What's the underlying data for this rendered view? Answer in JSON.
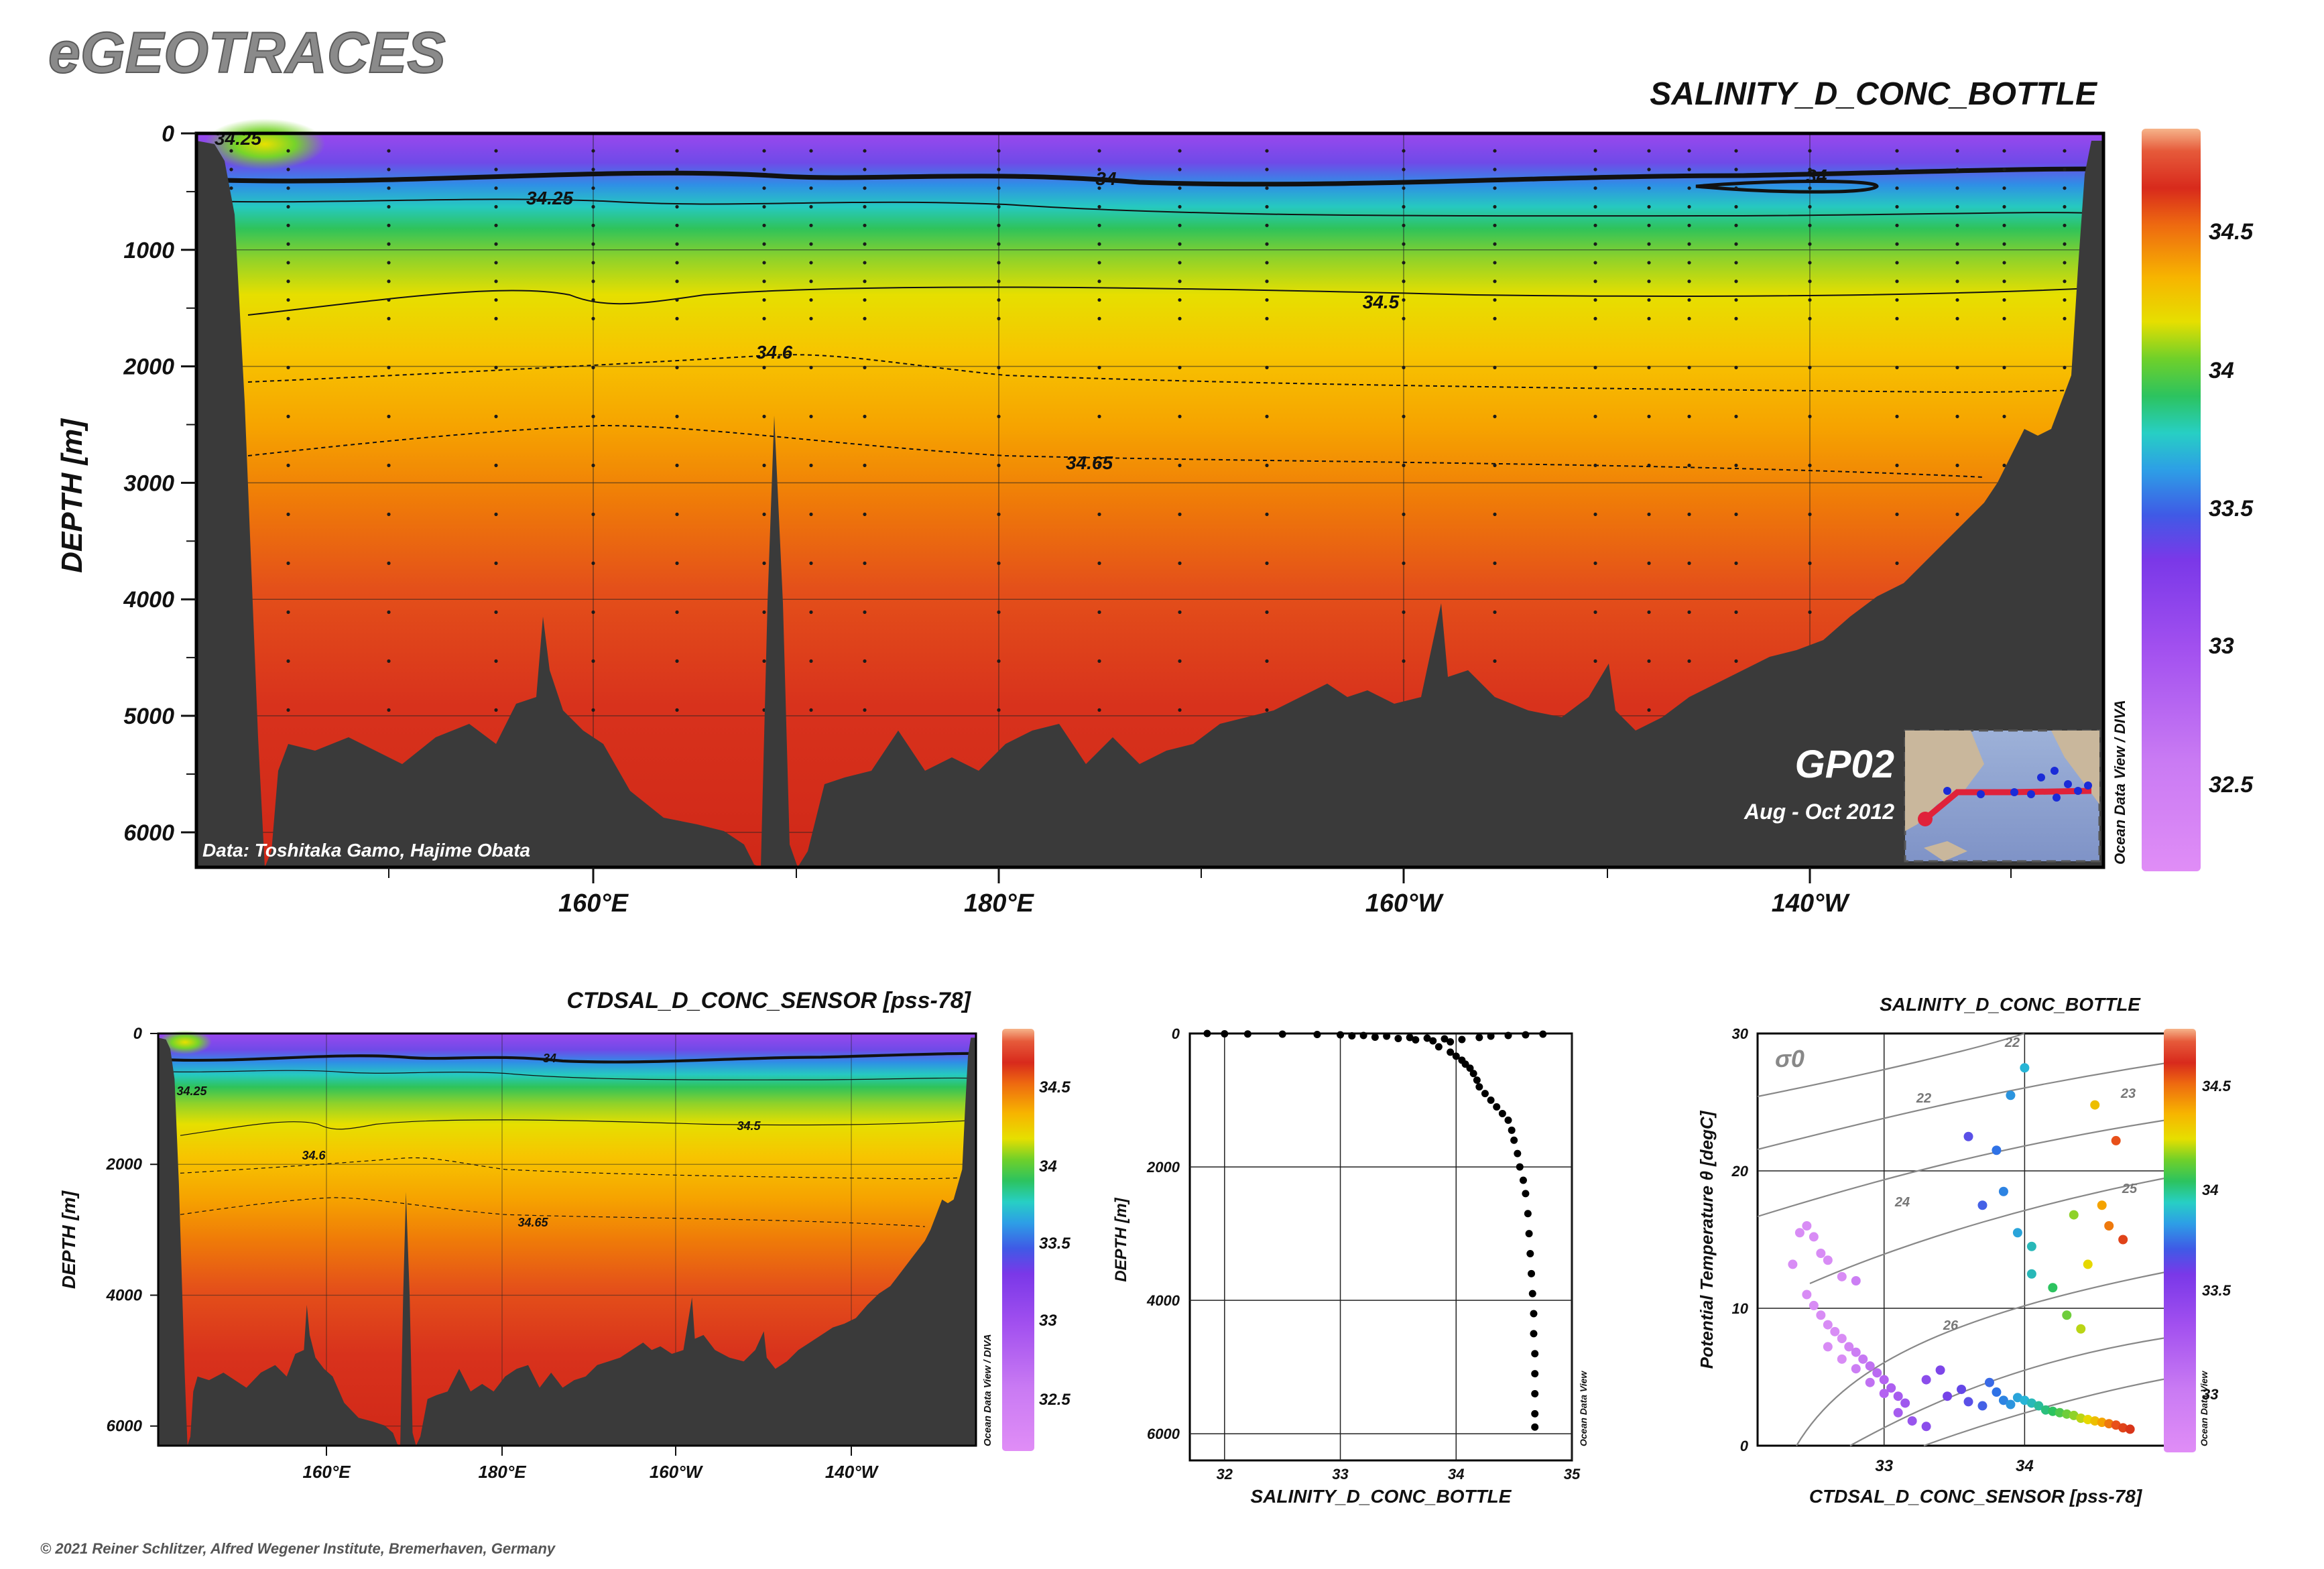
{
  "brand": "eGEOTRACES",
  "copyright": "© 2021 Reiner Schlitzer, Alfred Wegener Institute, Bremerhaven, Germany",
  "watermark_diva": "Ocean Data View / DIVA",
  "watermark_odv": "Ocean Data View",
  "colors": {
    "land": "#3a3a3a",
    "scale": [
      "#e37ff2",
      "#b15cf0",
      "#7d38e8",
      "#3f5ae6",
      "#2f9fe6",
      "#26d2c8",
      "#2bc76a",
      "#76d42a",
      "#e8e000",
      "#f6c000",
      "#f49100",
      "#ea5a10",
      "#d62e18",
      "#c8201a"
    ]
  },
  "chart_data": [
    {
      "type": "heatmap",
      "title": "SALINITY_D_CONC_BOTTLE",
      "ylabel": "DEPTH [m]",
      "xlabel": "",
      "y_ticks": [
        "0",
        "1000",
        "2000",
        "3000",
        "4000",
        "5000",
        "6000"
      ],
      "x_ticks": [
        "160°E",
        "180°E",
        "160°W",
        "140°W"
      ],
      "ylim": [
        0,
        6300
      ],
      "colorbar_ticks": [
        "34.5",
        "34",
        "33.5",
        "33",
        "32.5"
      ],
      "contour_labels": [
        "34.25",
        "34",
        "34",
        "34.25",
        "34.5",
        "34.6",
        "34.65"
      ],
      "section_name": "GP02",
      "cruise_period": "Aug - Oct 2012",
      "data_credit": "Data: Toshitaka Gamo, Hajime Obata",
      "grid": true
    },
    {
      "type": "heatmap",
      "title": "CTDSAL_D_CONC_SENSOR [pss-78]",
      "ylabel": "DEPTH [m]",
      "y_ticks": [
        "0",
        "2000",
        "4000",
        "6000"
      ],
      "x_ticks": [
        "160°E",
        "180°E",
        "160°W",
        "140°W"
      ],
      "colorbar_ticks": [
        "34.5",
        "34",
        "33.5",
        "33",
        "32.5"
      ],
      "contour_labels": [
        "34",
        "34.25",
        "34.5",
        "34.6",
        "34.65"
      ],
      "grid": true
    },
    {
      "type": "scatter",
      "xlabel": "SALINITY_D_CONC_BOTTLE",
      "ylabel": "DEPTH [m]",
      "x_ticks": [
        "32",
        "33",
        "34",
        "35"
      ],
      "y_ticks": [
        "0",
        "2000",
        "4000",
        "6000"
      ],
      "xlim": [
        31.7,
        35
      ],
      "ylim": [
        0,
        6400
      ],
      "points": [
        [
          31.85,
          0
        ],
        [
          32.0,
          5
        ],
        [
          32.2,
          8
        ],
        [
          32.5,
          10
        ],
        [
          32.8,
          15
        ],
        [
          33.0,
          20
        ],
        [
          33.2,
          30
        ],
        [
          33.4,
          40
        ],
        [
          33.6,
          60
        ],
        [
          33.75,
          70
        ],
        [
          33.9,
          80
        ],
        [
          34.05,
          90
        ],
        [
          34.2,
          60
        ],
        [
          34.3,
          40
        ],
        [
          34.45,
          30
        ],
        [
          34.6,
          20
        ],
        [
          34.75,
          10
        ],
        [
          33.1,
          35
        ],
        [
          33.3,
          55
        ],
        [
          33.5,
          75
        ],
        [
          33.65,
          95
        ],
        [
          33.8,
          110
        ],
        [
          33.95,
          125
        ],
        [
          33.85,
          200
        ],
        [
          33.95,
          280
        ],
        [
          34.0,
          340
        ],
        [
          34.05,
          400
        ],
        [
          34.08,
          460
        ],
        [
          34.12,
          520
        ],
        [
          34.15,
          600
        ],
        [
          34.18,
          700
        ],
        [
          34.2,
          800
        ],
        [
          34.25,
          900
        ],
        [
          34.3,
          1000
        ],
        [
          34.35,
          1100
        ],
        [
          34.4,
          1200
        ],
        [
          34.45,
          1300
        ],
        [
          34.48,
          1450
        ],
        [
          34.5,
          1600
        ],
        [
          34.53,
          1800
        ],
        [
          34.55,
          2000
        ],
        [
          34.58,
          2200
        ],
        [
          34.6,
          2400
        ],
        [
          34.62,
          2700
        ],
        [
          34.63,
          3000
        ],
        [
          34.64,
          3300
        ],
        [
          34.65,
          3600
        ],
        [
          34.66,
          3900
        ],
        [
          34.67,
          4200
        ],
        [
          34.67,
          4500
        ],
        [
          34.68,
          4800
        ],
        [
          34.68,
          5100
        ],
        [
          34.68,
          5400
        ],
        [
          34.68,
          5700
        ],
        [
          34.68,
          5900
        ]
      ],
      "grid": true
    },
    {
      "type": "scatter",
      "title": "SALINITY_D_CONC_BOTTLE",
      "xlabel": "CTDSAL_D_CONC_SENSOR [pss-78]",
      "ylabel": "Potential Temperature θ [degC]",
      "x_ticks": [
        "33",
        "34"
      ],
      "y_ticks": [
        "0",
        "10",
        "20",
        "30"
      ],
      "xlim": [
        32.1,
        35.2
      ],
      "ylim": [
        0,
        30
      ],
      "sigma_label": "σ0",
      "isopycnal_labels": [
        "22",
        "23",
        "24",
        "25",
        "26"
      ],
      "colorbar_ticks": [
        "34.5",
        "34",
        "33.5",
        "33"
      ],
      "points": [
        [
          32.45,
          16
        ],
        [
          32.5,
          15.2
        ],
        [
          32.55,
          14
        ],
        [
          32.6,
          13.5
        ],
        [
          32.4,
          15.5
        ],
        [
          32.35,
          13.2
        ],
        [
          32.7,
          12.3
        ],
        [
          32.8,
          12
        ],
        [
          32.45,
          11
        ],
        [
          32.5,
          10.2
        ],
        [
          32.55,
          9.5
        ],
        [
          32.6,
          8.8
        ],
        [
          32.65,
          8.3
        ],
        [
          32.7,
          7.8
        ],
        [
          32.75,
          7.2
        ],
        [
          32.8,
          6.8
        ],
        [
          32.85,
          6.3
        ],
        [
          32.9,
          5.8
        ],
        [
          32.95,
          5.3
        ],
        [
          33.0,
          4.8
        ],
        [
          33.05,
          4.2
        ],
        [
          33.1,
          3.6
        ],
        [
          33.15,
          3.1
        ],
        [
          32.6,
          7.2
        ],
        [
          32.7,
          6.3
        ],
        [
          32.8,
          5.6
        ],
        [
          32.9,
          4.6
        ],
        [
          33.0,
          3.8
        ],
        [
          33.1,
          2.4
        ],
        [
          33.2,
          1.8
        ],
        [
          33.3,
          1.4
        ],
        [
          33.3,
          4.8
        ],
        [
          33.4,
          5.5
        ],
        [
          33.45,
          3.6
        ],
        [
          33.55,
          4.1
        ],
        [
          33.6,
          3.2
        ],
        [
          33.7,
          2.9
        ],
        [
          33.75,
          4.6
        ],
        [
          33.8,
          3.9
        ],
        [
          33.85,
          3.3
        ],
        [
          33.9,
          3.0
        ],
        [
          33.95,
          3.5
        ],
        [
          34.0,
          3.3
        ],
        [
          34.05,
          3.1
        ],
        [
          34.1,
          2.9
        ],
        [
          34.15,
          2.6
        ],
        [
          34.2,
          2.5
        ],
        [
          34.25,
          2.4
        ],
        [
          34.3,
          2.3
        ],
        [
          34.35,
          2.2
        ],
        [
          34.4,
          2.0
        ],
        [
          34.45,
          1.9
        ],
        [
          34.5,
          1.8
        ],
        [
          34.55,
          1.7
        ],
        [
          34.6,
          1.6
        ],
        [
          34.65,
          1.5
        ],
        [
          34.7,
          1.3
        ],
        [
          34.75,
          1.2
        ],
        [
          33.6,
          22.5
        ],
        [
          33.8,
          21.5
        ],
        [
          33.9,
          25.5
        ],
        [
          34.0,
          27.5
        ],
        [
          33.85,
          18.5
        ],
        [
          33.95,
          15.5
        ],
        [
          34.05,
          14.5
        ],
        [
          33.7,
          17.5
        ],
        [
          34.05,
          12.5
        ],
        [
          34.2,
          11.5
        ],
        [
          34.3,
          9.5
        ],
        [
          34.4,
          8.5
        ],
        [
          34.5,
          24.8
        ],
        [
          34.65,
          22.2
        ],
        [
          34.55,
          17.5
        ],
        [
          34.6,
          16.0
        ],
        [
          34.7,
          15.0
        ],
        [
          34.35,
          16.8
        ],
        [
          34.45,
          13.2
        ]
      ],
      "grid": true
    }
  ]
}
